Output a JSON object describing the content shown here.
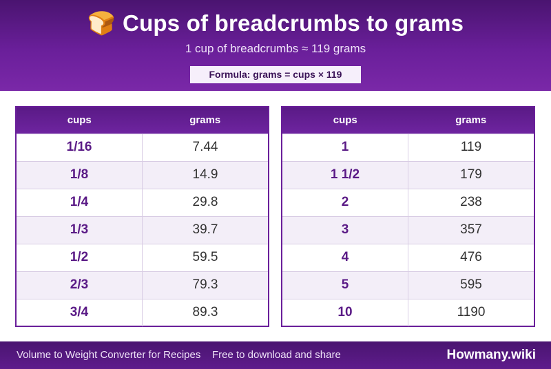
{
  "header": {
    "icon": "bread-icon",
    "icon_glyph": "🍞",
    "title": "Cups of breadcrumbs to grams",
    "subtitle": "1 cup of breadcrumbs ≈ 119 grams",
    "formula": "Formula: grams = cups × 119"
  },
  "tables": {
    "left": {
      "col_cups": "cups",
      "col_grams": "grams",
      "rows": [
        {
          "cups": "1/16",
          "grams": "7.44"
        },
        {
          "cups": "1/8",
          "grams": "14.9"
        },
        {
          "cups": "1/4",
          "grams": "29.8"
        },
        {
          "cups": "1/3",
          "grams": "39.7"
        },
        {
          "cups": "1/2",
          "grams": "59.5"
        },
        {
          "cups": "2/3",
          "grams": "79.3"
        },
        {
          "cups": "3/4",
          "grams": "89.3"
        }
      ]
    },
    "right": {
      "col_cups": "cups",
      "col_grams": "grams",
      "rows": [
        {
          "cups": "1",
          "grams": "119"
        },
        {
          "cups": "1 1/2",
          "grams": "179"
        },
        {
          "cups": "2",
          "grams": "238"
        },
        {
          "cups": "3",
          "grams": "357"
        },
        {
          "cups": "4",
          "grams": "476"
        },
        {
          "cups": "5",
          "grams": "595"
        },
        {
          "cups": "10",
          "grams": "1190"
        }
      ]
    }
  },
  "footer": {
    "left_text": "Volume to Weight Converter for Recipes",
    "mid_text": "Free to download and share",
    "brand": "Howmany.wiki"
  },
  "colors": {
    "accent": "#6a1f9a",
    "header_dark": "#4a1470",
    "row_alt": "#f3eef8"
  }
}
